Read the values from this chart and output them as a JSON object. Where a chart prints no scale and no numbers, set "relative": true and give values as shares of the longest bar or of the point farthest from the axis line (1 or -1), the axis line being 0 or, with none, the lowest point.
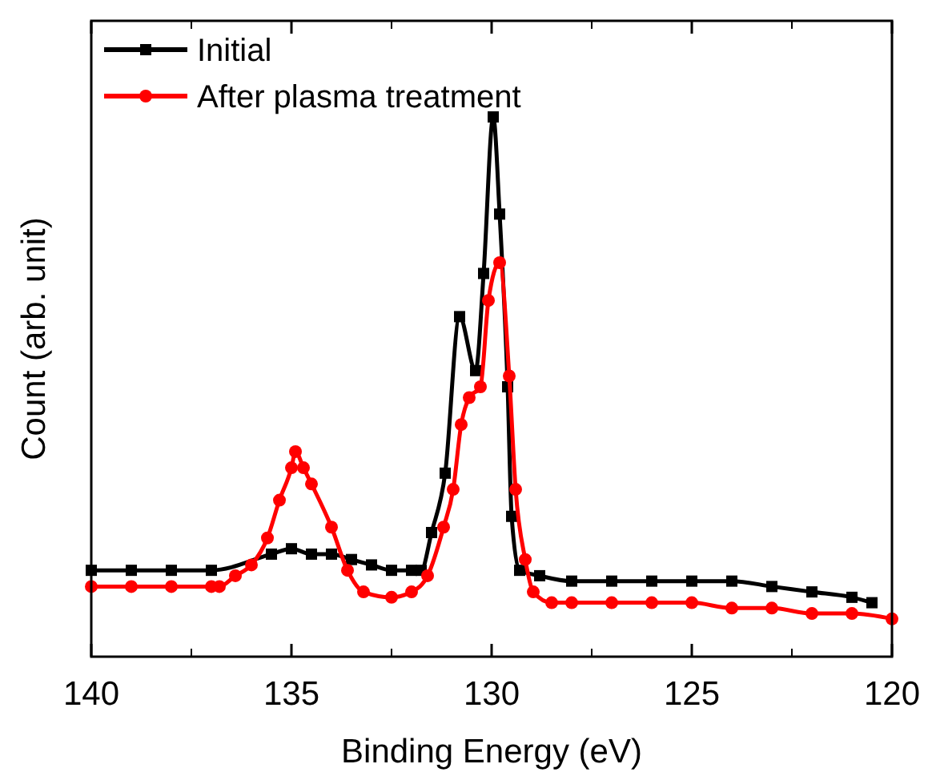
{
  "chart_data": {
    "type": "line",
    "relative": true,
    "xlabel": "Binding Energy (eV)",
    "ylabel": "Count (arb. unit)",
    "xlim": [
      140,
      120
    ],
    "xticks": [
      140,
      135,
      130,
      125,
      120
    ],
    "tick_labels": "x",
    "legend": "top left",
    "line_style": "solid",
    "series": [
      {
        "name": "Initial",
        "color": "#000000",
        "marker": "square",
        "x": [
          140,
          139,
          138,
          137,
          135.5,
          135,
          134.5,
          134,
          133.5,
          133,
          132.5,
          132,
          131.76,
          131.5,
          131.16,
          130.8,
          130.4,
          130.2,
          129.96,
          129.8,
          129.6,
          129.5,
          129.3,
          128.8,
          128,
          127,
          126,
          125,
          124,
          123,
          122,
          121,
          120.5
        ],
        "values": [
          0.16,
          0.16,
          0.16,
          0.16,
          0.19,
          0.2,
          0.19,
          0.19,
          0.18,
          0.17,
          0.16,
          0.16,
          0.16,
          0.23,
          0.34,
          0.63,
          0.53,
          0.71,
          1.0,
          0.82,
          0.5,
          0.26,
          0.16,
          0.15,
          0.14,
          0.14,
          0.14,
          0.14,
          0.14,
          0.13,
          0.12,
          0.11,
          0.1
        ]
      },
      {
        "name": "After plasma treatment",
        "color": "#ff0000",
        "marker": "circle",
        "x": [
          140,
          139,
          138,
          137,
          136.8,
          136.4,
          136,
          135.6,
          135.3,
          135,
          134.9,
          134.7,
          134.5,
          134,
          133.6,
          133.2,
          132.5,
          132,
          131.6,
          131.2,
          130.96,
          130.76,
          130.56,
          130.28,
          130.08,
          129.8,
          129.56,
          129.4,
          129.16,
          128.96,
          128.5,
          128,
          127,
          126,
          125,
          124,
          123,
          122,
          121,
          120
        ],
        "values": [
          0.13,
          0.13,
          0.13,
          0.13,
          0.13,
          0.15,
          0.17,
          0.22,
          0.29,
          0.35,
          0.38,
          0.35,
          0.32,
          0.24,
          0.16,
          0.12,
          0.11,
          0.12,
          0.15,
          0.24,
          0.31,
          0.43,
          0.48,
          0.5,
          0.66,
          0.73,
          0.52,
          0.31,
          0.18,
          0.12,
          0.1,
          0.1,
          0.1,
          0.1,
          0.1,
          0.09,
          0.09,
          0.08,
          0.08,
          0.07
        ]
      }
    ]
  }
}
